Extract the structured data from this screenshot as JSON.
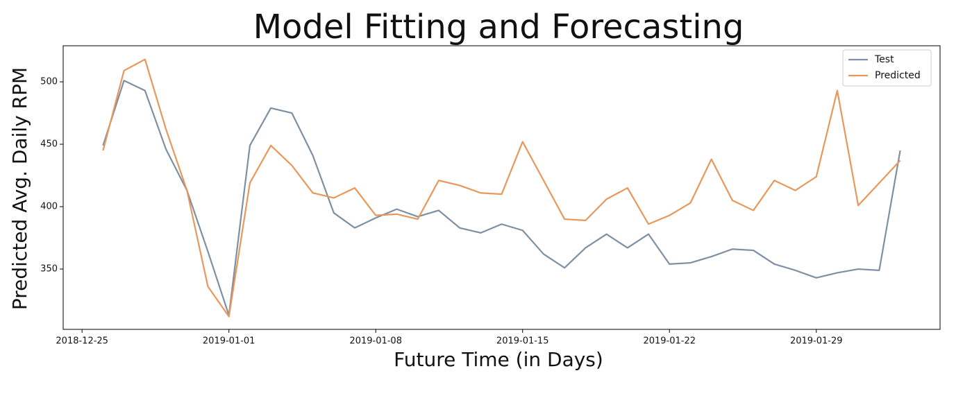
{
  "chart_data": {
    "type": "line",
    "title": "Model Fitting and Forecasting",
    "xlabel": "Future Time (in Days)",
    "ylabel": "Predicted Avg. Daily RPM",
    "x": [
      "2018-12-26",
      "2018-12-27",
      "2018-12-28",
      "2018-12-29",
      "2018-12-30",
      "2018-12-31",
      "2019-01-01",
      "2019-01-02",
      "2019-01-03",
      "2019-01-04",
      "2019-01-05",
      "2019-01-06",
      "2019-01-07",
      "2019-01-08",
      "2019-01-09",
      "2019-01-10",
      "2019-01-11",
      "2019-01-12",
      "2019-01-13",
      "2019-01-14",
      "2019-01-15",
      "2019-01-16",
      "2019-01-17",
      "2019-01-18",
      "2019-01-19",
      "2019-01-20",
      "2019-01-21",
      "2019-01-22",
      "2019-01-23",
      "2019-01-24",
      "2019-01-25",
      "2019-01-26",
      "2019-01-27",
      "2019-01-28",
      "2019-01-29",
      "2019-01-30",
      "2019-01-31",
      "2019-02-01",
      "2019-02-02"
    ],
    "series": [
      {
        "name": "Test",
        "color": "#7d8fa3",
        "values": [
          449,
          501,
          493,
          446,
          413,
          364,
          313,
          449,
          479,
          475,
          441,
          395,
          383,
          391,
          398,
          392,
          397,
          383,
          379,
          386,
          381,
          362,
          351,
          367,
          378,
          367,
          378,
          354,
          355,
          360,
          366,
          365,
          354,
          349,
          343,
          347,
          350,
          349,
          445
        ]
      },
      {
        "name": "Predicted",
        "color": "#e8975a",
        "values": [
          445,
          509,
          518,
          462,
          413,
          336,
          312,
          419,
          449,
          433,
          411,
          407,
          415,
          393,
          394,
          390,
          421,
          417,
          411,
          410,
          452,
          421,
          390,
          389,
          406,
          415,
          386,
          393,
          403,
          438,
          405,
          397,
          421,
          413,
          424,
          493,
          401,
          419,
          437
        ]
      }
    ],
    "xlim": [
      "2018-12-24T02:24",
      "2019-02-03T21:36"
    ],
    "xticks": [
      "2018-12-25",
      "2019-01-01",
      "2019-01-08",
      "2019-01-15",
      "2019-01-22",
      "2019-01-29"
    ],
    "ylim": [
      301.7,
      528.9
    ],
    "yticks": [
      350,
      400,
      450,
      500
    ],
    "legend": "upper right"
  }
}
